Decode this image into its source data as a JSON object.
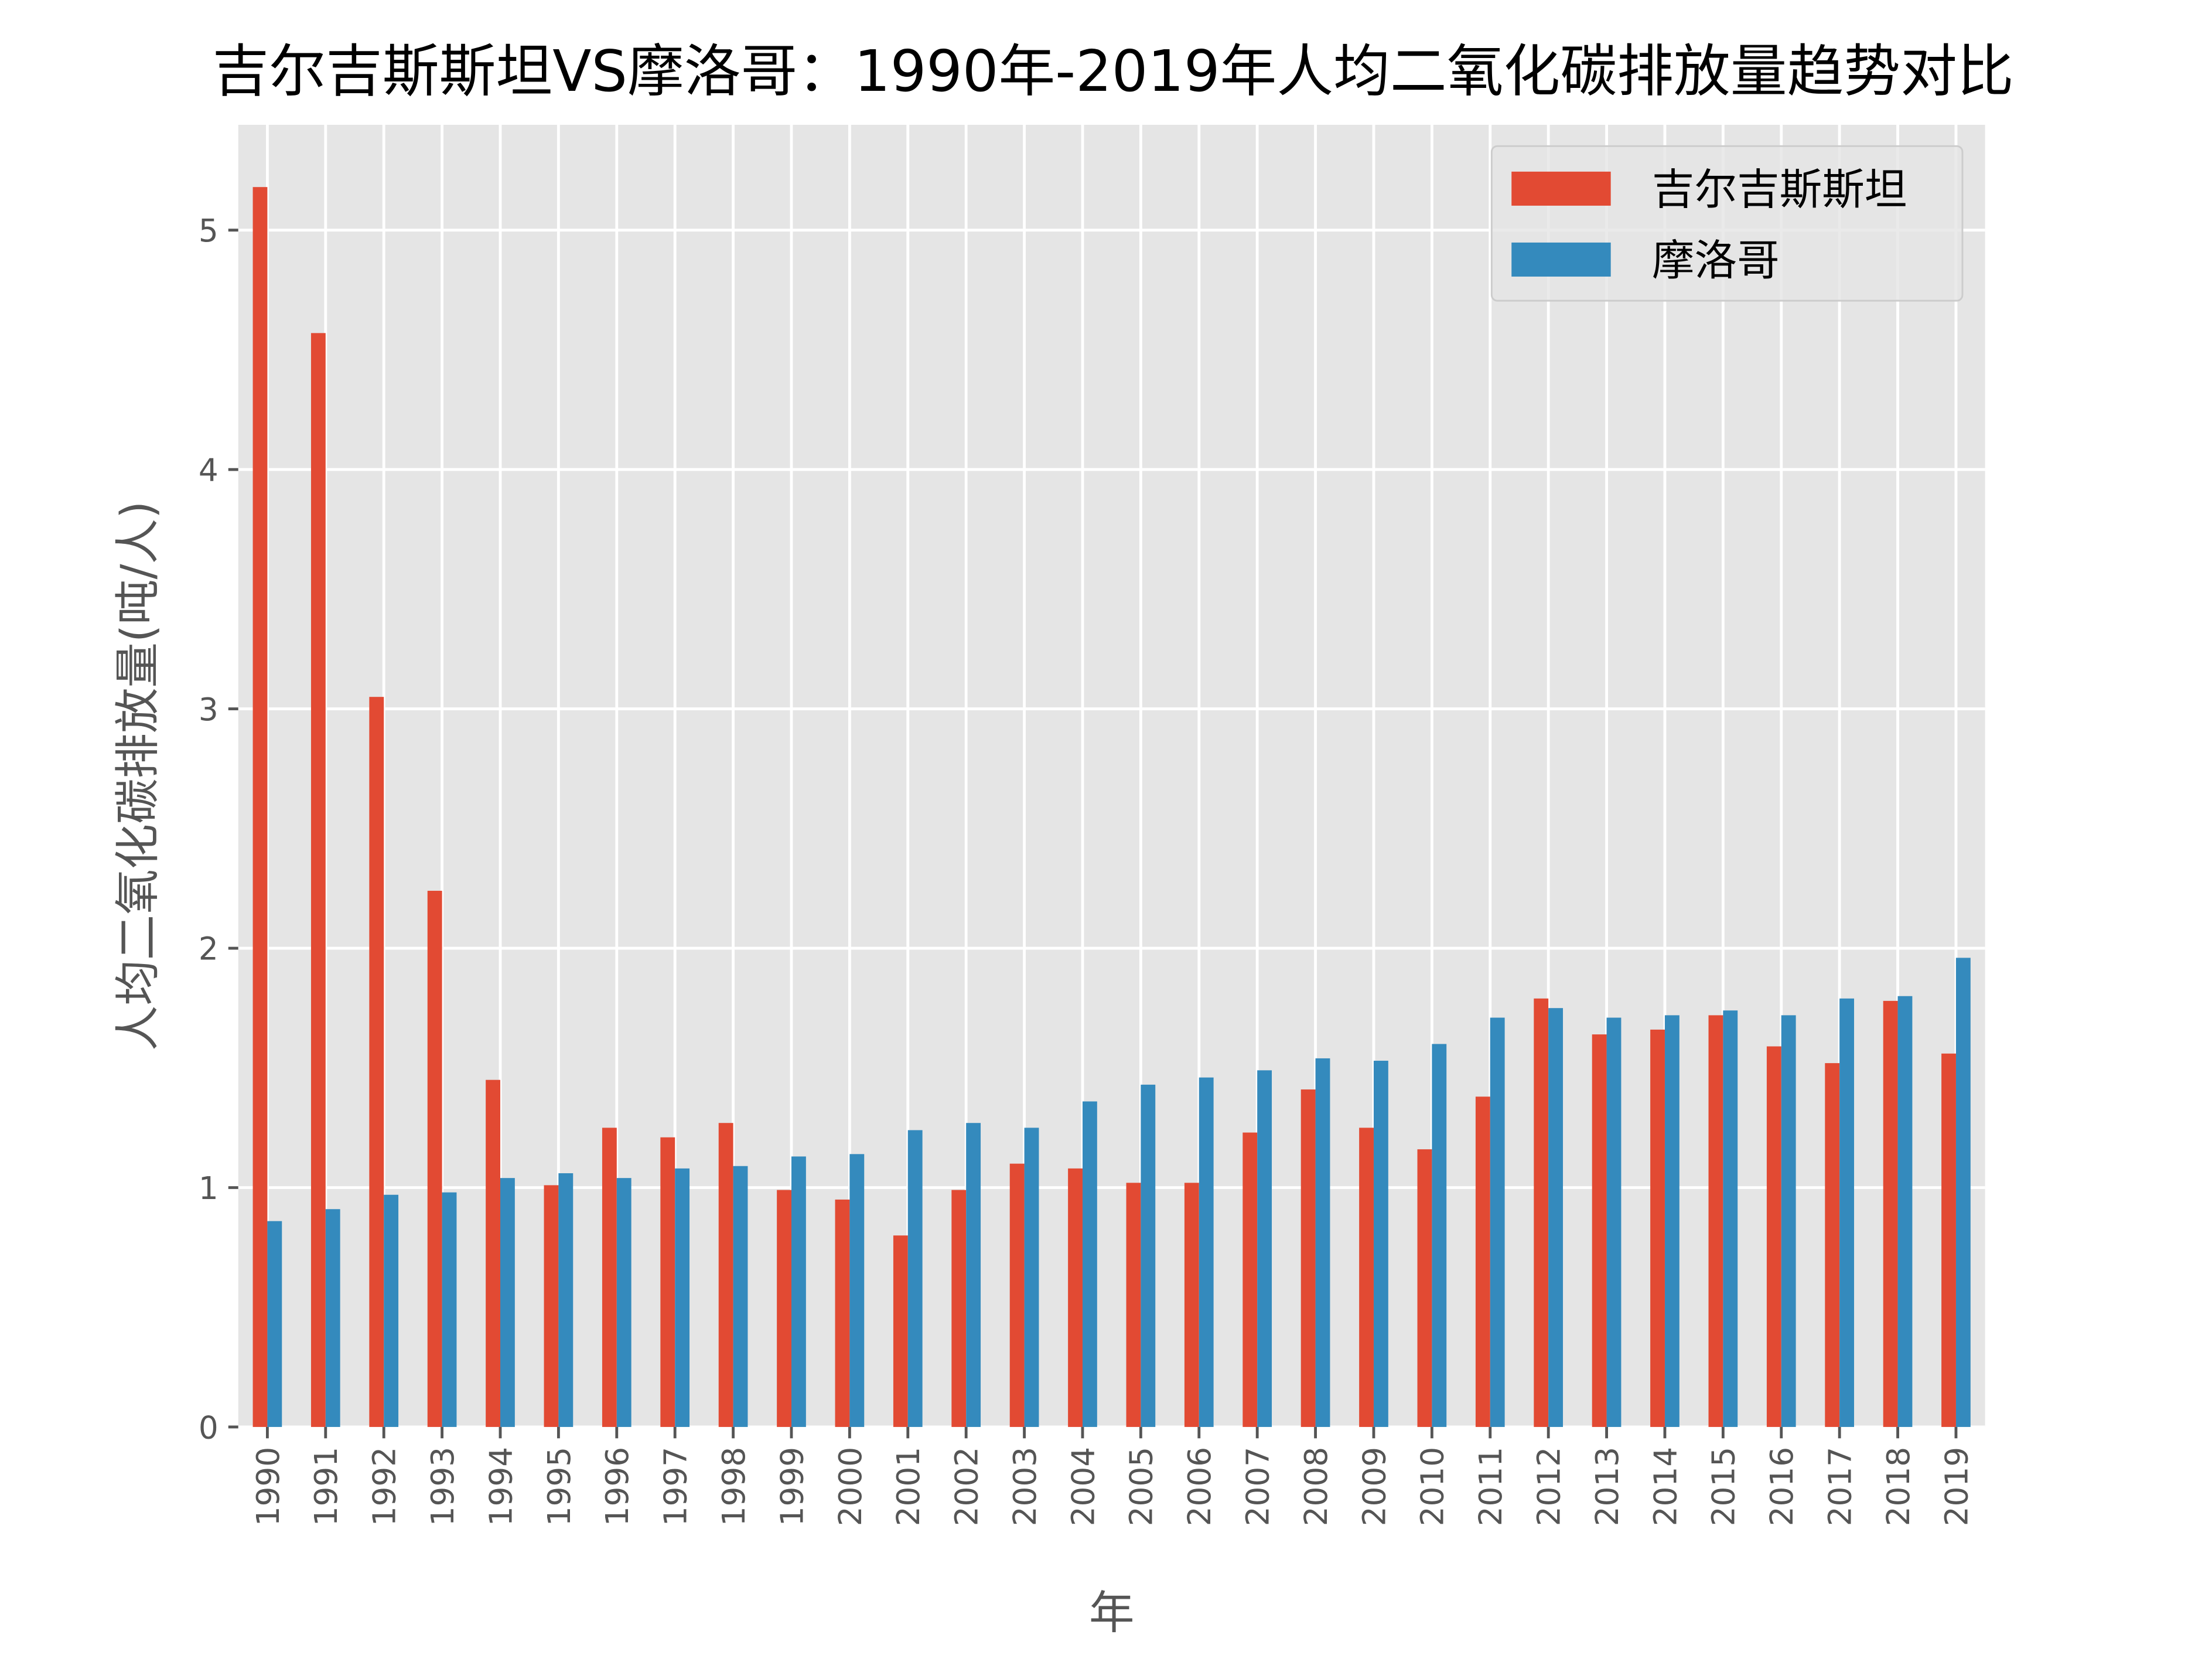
{
  "chart_data": {
    "type": "bar",
    "title": "吉尔吉斯斯坦VS摩洛哥：1990年-2019年人均二氧化碳排放量趋势对比",
    "xlabel": "年",
    "ylabel": "人均二氧化碳排放量(吨/人)",
    "ylim": [
      0,
      5.44
    ],
    "yticks": [
      "0",
      "1",
      "2",
      "3",
      "4",
      "5"
    ],
    "grid": true,
    "legend_position": "top-right",
    "categories": [
      "1990",
      "1991",
      "1992",
      "1993",
      "1994",
      "1995",
      "1996",
      "1997",
      "1998",
      "1999",
      "2000",
      "2001",
      "2002",
      "2003",
      "2004",
      "2005",
      "2006",
      "2007",
      "2008",
      "2009",
      "2010",
      "2011",
      "2012",
      "2013",
      "2014",
      "2015",
      "2016",
      "2017",
      "2018",
      "2019"
    ],
    "series": [
      {
        "name": "吉尔吉斯斯坦",
        "color": "#E24A33",
        "values": [
          5.18,
          4.57,
          3.05,
          2.24,
          1.45,
          1.01,
          1.25,
          1.21,
          1.27,
          0.99,
          0.95,
          0.8,
          0.99,
          1.1,
          1.08,
          1.02,
          1.02,
          1.23,
          1.41,
          1.25,
          1.16,
          1.38,
          1.79,
          1.64,
          1.66,
          1.72,
          1.59,
          1.52,
          1.78,
          1.56
        ]
      },
      {
        "name": "摩洛哥",
        "color": "#348ABD",
        "values": [
          0.86,
          0.91,
          0.97,
          0.98,
          1.04,
          1.06,
          1.04,
          1.08,
          1.09,
          1.13,
          1.14,
          1.24,
          1.27,
          1.25,
          1.36,
          1.43,
          1.46,
          1.49,
          1.54,
          1.53,
          1.6,
          1.71,
          1.75,
          1.71,
          1.72,
          1.74,
          1.72,
          1.79,
          1.8,
          1.96
        ]
      }
    ],
    "background_color": "#E5E5E5"
  }
}
